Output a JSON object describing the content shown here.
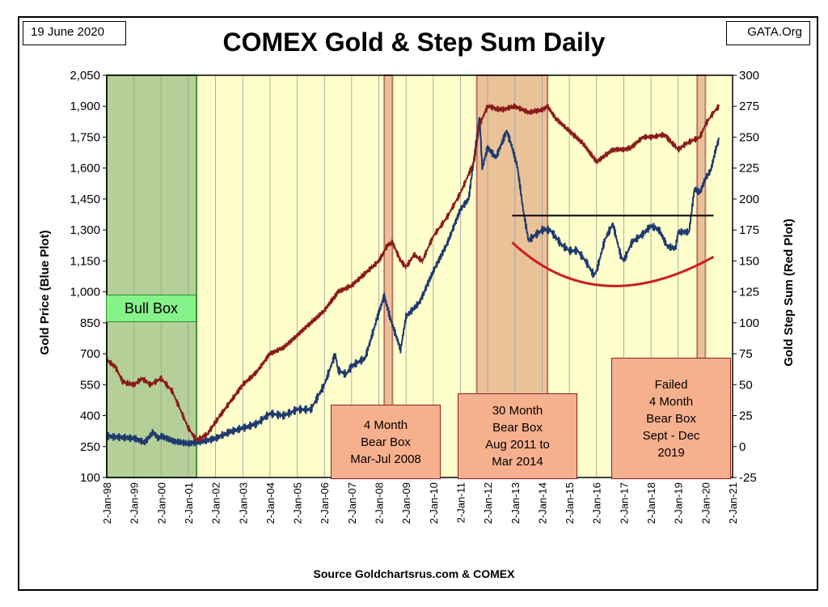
{
  "header": {
    "date": "19 June 2020",
    "source_site": "GATA.Org"
  },
  "footer": "Source Goldchartsrus.com & COMEX",
  "annotations": {
    "bull_box": "Bull Box",
    "bear_2008": "4 Month\nBear Box\nMar-Jul 2008",
    "bear_2011": "30 Month\nBear Box\nAug 2011 to\nMar 2014",
    "bear_2019": "Failed\n4 Month\nBear Box\nSept - Dec\n2019"
  },
  "colors": {
    "plot_bg": "#ffffcc",
    "gold_line": "#1f3a6e",
    "step_sum_line": "#8b1a1a",
    "bull_shade": "#a8c890",
    "bear_shade": "#e6b48c",
    "bear_edge": "#b05050",
    "cup_curve": "#cc2020",
    "resistance_line": "#000000"
  },
  "chart_data": {
    "type": "line",
    "title": "COMEX Gold & Step Sum Daily",
    "y_left_label": "Gold Price   (Blue Plot)",
    "y_right_label": "Gold Step Sum   (Red Plot)",
    "y_left_lim": [
      100,
      2050
    ],
    "y_right_lim": [
      -25,
      300
    ],
    "y_left_ticks": [
      "100",
      "250",
      "400",
      "550",
      "700",
      "850",
      "1,000",
      "1,150",
      "1,300",
      "1,450",
      "1,600",
      "1,750",
      "1,900",
      "2,050"
    ],
    "y_right_ticks": [
      "-25",
      "0",
      "25",
      "50",
      "75",
      "100",
      "125",
      "150",
      "175",
      "200",
      "225",
      "250",
      "275",
      "300"
    ],
    "x_range": [
      1998.0,
      2021.0
    ],
    "x_ticks": [
      "2-Jan-98",
      "2-Jan-99",
      "2-Jan-00",
      "2-Jan-01",
      "2-Jan-02",
      "2-Jan-03",
      "2-Jan-04",
      "2-Jan-05",
      "2-Jan-06",
      "2-Jan-07",
      "2-Jan-08",
      "2-Jan-09",
      "2-Jan-10",
      "2-Jan-11",
      "2-Jan-12",
      "2-Jan-13",
      "2-Jan-14",
      "2-Jan-15",
      "2-Jan-16",
      "2-Jan-17",
      "2-Jan-18",
      "2-Jan-19",
      "2-Jan-20",
      "2-Jan-21"
    ],
    "grid": "vertical",
    "shaded_regions": [
      {
        "kind": "bull",
        "x0": 1998.0,
        "x1": 2001.3
      },
      {
        "kind": "bear",
        "x0": 2008.2,
        "x1": 2008.5
      },
      {
        "kind": "bear",
        "x0": 2011.6,
        "x1": 2014.2
      },
      {
        "kind": "bear",
        "x0": 2019.7,
        "x1": 2020.0
      }
    ],
    "series": [
      {
        "name": "Gold Price",
        "axis": "left",
        "x": [
          1998.0,
          1998.5,
          1999.0,
          1999.4,
          1999.7,
          1999.9,
          2000.0,
          2000.5,
          2001.0,
          2001.3,
          2001.7,
          2002.0,
          2002.5,
          2003.0,
          2003.5,
          2004.0,
          2004.5,
          2005.0,
          2005.5,
          2006.0,
          2006.4,
          2006.5,
          2006.8,
          2007.0,
          2007.5,
          2008.0,
          2008.2,
          2008.4,
          2008.6,
          2008.8,
          2009.0,
          2009.5,
          2010.0,
          2010.5,
          2011.0,
          2011.3,
          2011.7,
          2011.8,
          2012.0,
          2012.3,
          2012.7,
          2012.9,
          2013.1,
          2013.3,
          2013.5,
          2014.0,
          2014.3,
          2014.7,
          2015.0,
          2015.3,
          2015.6,
          2015.9,
          2016.0,
          2016.3,
          2016.6,
          2016.9,
          2017.0,
          2017.3,
          2017.7,
          2018.0,
          2018.3,
          2018.6,
          2018.9,
          2019.0,
          2019.4,
          2019.6,
          2019.8,
          2020.0,
          2020.2,
          2020.4,
          2020.5
        ],
        "values": [
          300,
          295,
          290,
          270,
          320,
          290,
          300,
          275,
          265,
          270,
          280,
          290,
          320,
          340,
          360,
          410,
          400,
          430,
          430,
          550,
          700,
          620,
          600,
          640,
          680,
          900,
          980,
          880,
          800,
          720,
          880,
          950,
          1100,
          1230,
          1400,
          1450,
          1850,
          1600,
          1700,
          1650,
          1780,
          1700,
          1600,
          1400,
          1250,
          1300,
          1300,
          1230,
          1200,
          1200,
          1150,
          1080,
          1100,
          1250,
          1330,
          1170,
          1150,
          1240,
          1280,
          1320,
          1300,
          1220,
          1210,
          1290,
          1290,
          1500,
          1480,
          1550,
          1590,
          1700,
          1740
        ]
      },
      {
        "name": "Gold Step Sum",
        "axis": "right",
        "x": [
          1998.0,
          1998.3,
          1998.6,
          1999.0,
          1999.3,
          1999.6,
          2000.0,
          2000.4,
          2000.7,
          2001.0,
          2001.3,
          2001.7,
          2002.0,
          2002.5,
          2003.0,
          2003.5,
          2004.0,
          2004.5,
          2005.0,
          2005.5,
          2006.0,
          2006.5,
          2007.0,
          2007.5,
          2008.0,
          2008.3,
          2008.5,
          2008.8,
          2009.0,
          2009.3,
          2009.6,
          2010.0,
          2010.5,
          2011.0,
          2011.5,
          2011.7,
          2012.0,
          2012.5,
          2013.0,
          2013.5,
          2014.0,
          2014.2,
          2014.5,
          2015.0,
          2015.5,
          2016.0,
          2016.3,
          2016.6,
          2017.0,
          2017.3,
          2017.7,
          2018.0,
          2018.5,
          2019.0,
          2019.3,
          2019.6,
          2019.8,
          2020.0,
          2020.3,
          2020.5
        ],
        "values": [
          70,
          65,
          52,
          50,
          55,
          50,
          55,
          45,
          30,
          15,
          5,
          10,
          20,
          35,
          50,
          60,
          75,
          80,
          90,
          100,
          110,
          125,
          130,
          140,
          150,
          162,
          165,
          150,
          145,
          155,
          150,
          170,
          185,
          205,
          230,
          260,
          275,
          272,
          275,
          270,
          272,
          275,
          265,
          255,
          245,
          230,
          235,
          240,
          240,
          242,
          250,
          250,
          252,
          240,
          245,
          248,
          250,
          260,
          270,
          275
        ]
      }
    ],
    "overlays": [
      {
        "kind": "horizontal_line",
        "axis": "left",
        "x0": 2012.9,
        "x1": 2020.3,
        "y": 1370
      },
      {
        "kind": "cup_curve",
        "axis": "left",
        "x0": 2012.9,
        "x_min": 2016.0,
        "x1": 2020.3,
        "y_ends": [
          1240,
          1170
        ],
        "y_min": 1030
      }
    ]
  }
}
